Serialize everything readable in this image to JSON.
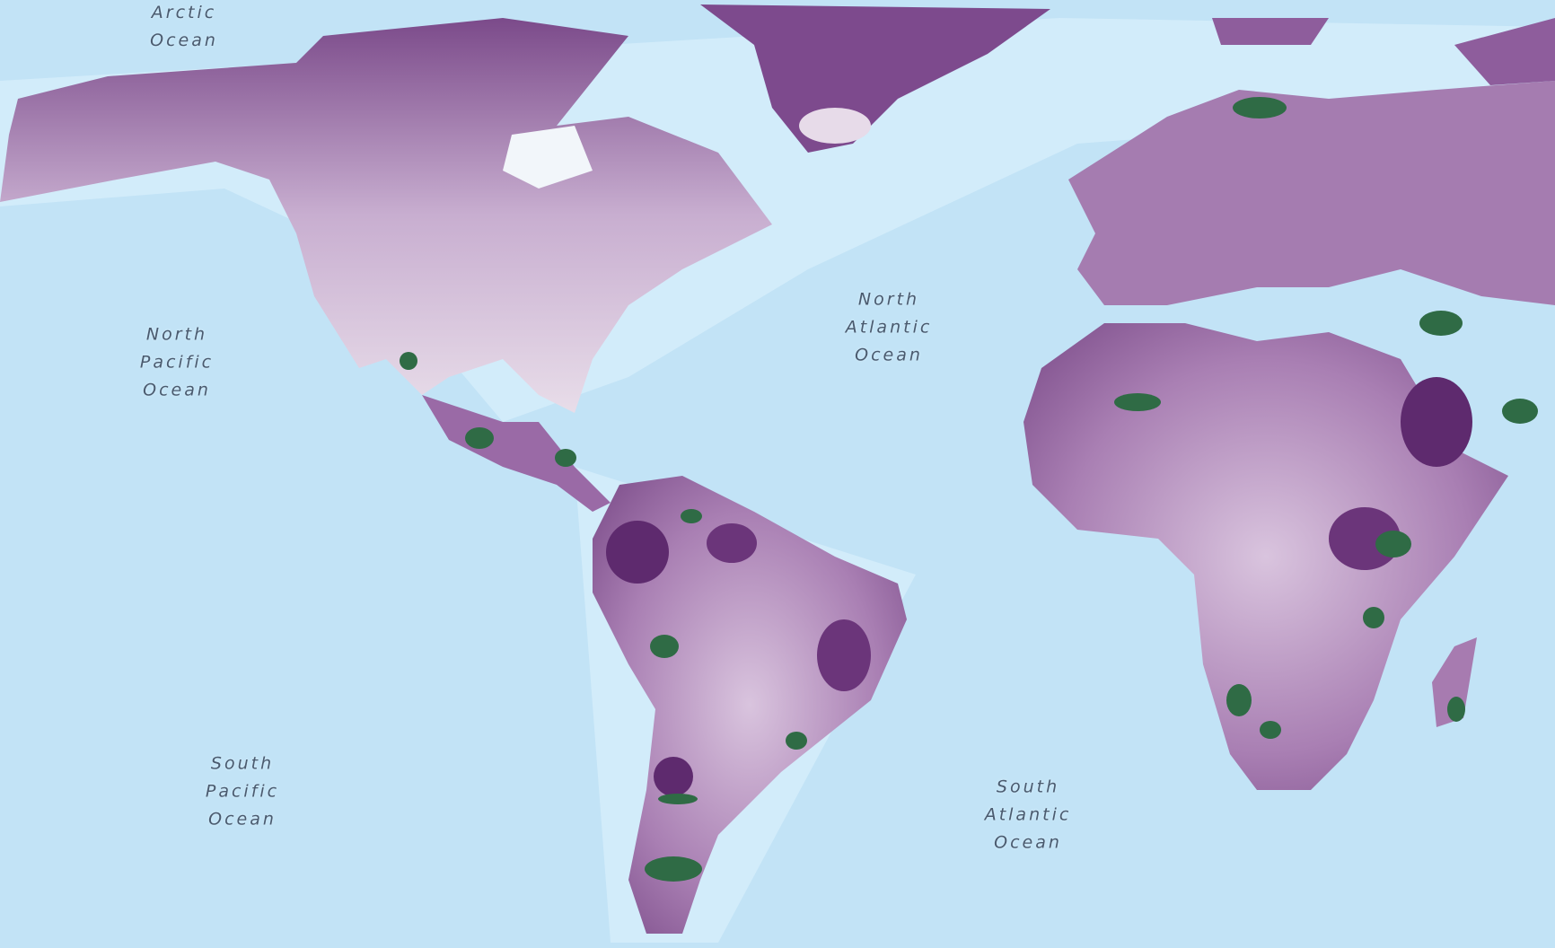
{
  "map": {
    "ocean_labels": {
      "arctic": "Arctic\nOcean",
      "north_pacific": "North\nPacific\nOcean",
      "north_atlantic": "North\nAtlantic\nOcean",
      "south_pacific": "South\nPacific\nOcean",
      "south_atlantic": "South\nAtlantic\nOcean"
    },
    "colors": {
      "ocean": "#c2e3f6",
      "shelf": "#d6eefb",
      "land_light": "#e6d8e8",
      "land_mid": "#a77bb0",
      "land_dark": "#5e2a6e",
      "highlight_green": "#2f6b45"
    }
  }
}
